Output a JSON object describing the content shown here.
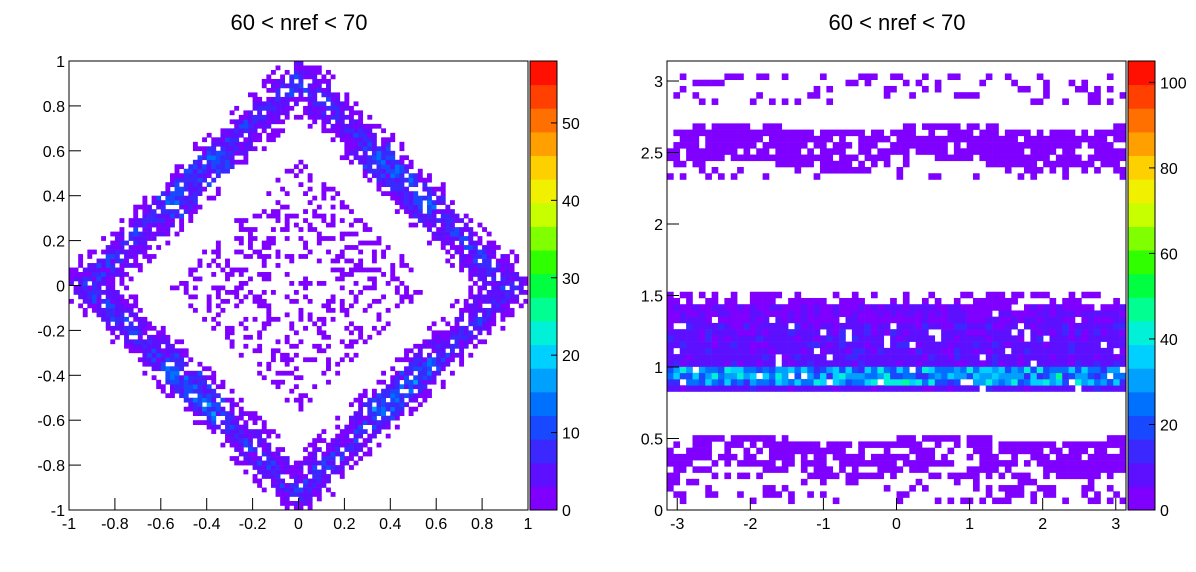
{
  "chart_data": [
    {
      "type": "heatmap",
      "title": "60 < nref < 70",
      "xlabel": "",
      "ylabel": "",
      "xlim": [
        -1,
        1
      ],
      "ylim": [
        -1,
        1
      ],
      "x_ticks": [
        "-1",
        "-0.8",
        "-0.6",
        "-0.4",
        "-0.2",
        "0",
        "0.2",
        "0.4",
        "0.6",
        "0.8",
        "1"
      ],
      "y_ticks": [
        "-1",
        "-0.8",
        "-0.6",
        "-0.4",
        "-0.2",
        "0",
        "0.2",
        "0.4",
        "0.6",
        "0.8",
        "1"
      ],
      "z_range": [
        0,
        58
      ],
      "z_ticks": [
        "0",
        "10",
        "20",
        "30",
        "40",
        "50"
      ],
      "palette": [
        "#7f00ff",
        "#5c10ff",
        "#3a28ff",
        "#1848ff",
        "#0070ff",
        "#00a0ff",
        "#00d0ff",
        "#00f0d8",
        "#00ff90",
        "#00ff40",
        "#30ff00",
        "#80ff00",
        "#c8ff00",
        "#f0f000",
        "#ffd000",
        "#ffa000",
        "#ff7000",
        "#ff4000",
        "#ff1000"
      ],
      "distribution": "diamond-shaped ring band |x|+|y| ≈ 0.85–1.0 with dense edges (counts mostly 1–15), sparse scattered interior diamond |x|+|y| ≈ 0.2–0.55",
      "grid": false
    },
    {
      "type": "heatmap",
      "title": "60 < nref < 70",
      "xlabel": "",
      "ylabel": "",
      "xlim": [
        -3.14,
        3.14
      ],
      "ylim": [
        0,
        3.14
      ],
      "x_ticks": [
        "-3",
        "-2",
        "-1",
        "0",
        "1",
        "2",
        "3"
      ],
      "y_ticks": [
        "0",
        "0.5",
        "1",
        "1.5",
        "2",
        "2.5",
        "3"
      ],
      "z_range": [
        0,
        105
      ],
      "z_ticks": [
        "0",
        "20",
        "40",
        "60",
        "80",
        "100"
      ],
      "palette": [
        "#7f00ff",
        "#5c10ff",
        "#3a28ff",
        "#1848ff",
        "#0070ff",
        "#00a0ff",
        "#00d0ff",
        "#00f0d8",
        "#00ff90",
        "#00ff40",
        "#30ff00",
        "#80ff00",
        "#c8ff00",
        "#f0f000",
        "#ffd000",
        "#ffa000",
        "#ff7000",
        "#ff4000",
        "#ff1000"
      ],
      "bands": [
        {
          "y_range": [
            0.05,
            0.55
          ],
          "density": "medium"
        },
        {
          "y_range": [
            0.8,
            1.5
          ],
          "density": "high",
          "peak_y": 0.95,
          "peak_count": 40
        },
        {
          "y_range": [
            2.3,
            2.7
          ],
          "density": "medium"
        },
        {
          "y_range": [
            2.85,
            3.05
          ],
          "density": "sparse"
        }
      ],
      "grid": false
    }
  ]
}
